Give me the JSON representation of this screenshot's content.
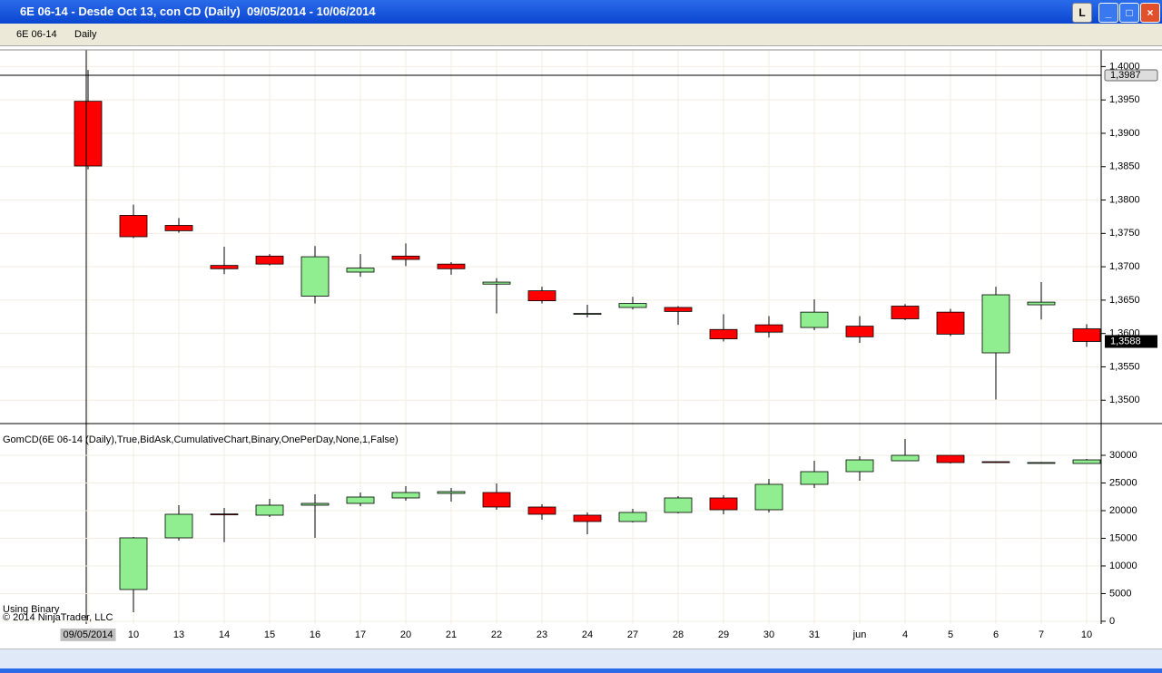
{
  "window": {
    "title": "6E 06-14 - Desde Oct 13, con CD (Daily)  09/05/2014 - 10/06/2014",
    "button": "L"
  },
  "toolbar": {
    "instrument": "6E 06-14",
    "interval": "Daily"
  },
  "footer": {
    "line1": "Using Binary",
    "line2": "© 2014 NinjaTrader, LLC"
  },
  "chart_data": [
    {
      "type": "candlestick",
      "categories": [
        "09/05/2014",
        "10",
        "13",
        "14",
        "15",
        "16",
        "17",
        "20",
        "21",
        "22",
        "23",
        "24",
        "27",
        "28",
        "29",
        "30",
        "31",
        "jun",
        "4",
        "5",
        "6",
        "7",
        "10"
      ],
      "open": [
        1.3948,
        1.3777,
        1.3762,
        1.3702,
        1.3716,
        1.3656,
        1.3692,
        1.3716,
        1.3704,
        1.3674,
        1.3664,
        1.363,
        1.3639,
        1.3639,
        1.3606,
        1.3613,
        1.3609,
        1.3611,
        1.3641,
        1.3632,
        1.3571,
        1.3643,
        1.3607
      ],
      "high": [
        1.3995,
        1.3793,
        1.3773,
        1.373,
        1.3719,
        1.3731,
        1.3719,
        1.3735,
        1.3707,
        1.3683,
        1.367,
        1.3643,
        1.3655,
        1.3641,
        1.3629,
        1.3626,
        1.3651,
        1.3626,
        1.3644,
        1.3637,
        1.367,
        1.3677,
        1.3614
      ],
      "low": [
        1.3846,
        1.3743,
        1.3751,
        1.3689,
        1.3702,
        1.3645,
        1.3685,
        1.3701,
        1.3688,
        1.363,
        1.3645,
        1.3624,
        1.3636,
        1.3613,
        1.3588,
        1.3594,
        1.3605,
        1.3586,
        1.362,
        1.3596,
        1.3501,
        1.3621,
        1.358
      ],
      "close": [
        1.3851,
        1.3745,
        1.3754,
        1.3697,
        1.3704,
        1.3715,
        1.3698,
        1.3711,
        1.3697,
        1.3677,
        1.3649,
        1.363,
        1.3645,
        1.3633,
        1.3592,
        1.3602,
        1.3632,
        1.3595,
        1.3622,
        1.3599,
        1.3658,
        1.3647,
        1.3588
      ],
      "up_color": "#90ee90",
      "down_color": "#ff0000",
      "ylim": [
        1.3465,
        1.4025
      ],
      "yticks": [
        {
          "value": 1.35,
          "label": "1,3500"
        },
        {
          "value": 1.355,
          "label": "1,3550"
        },
        {
          "value": 1.36,
          "label": "1,3600"
        },
        {
          "value": 1.365,
          "label": "1,3650"
        },
        {
          "value": 1.37,
          "label": "1,3700"
        },
        {
          "value": 1.375,
          "label": "1,3750"
        },
        {
          "value": 1.38,
          "label": "1,3800"
        },
        {
          "value": 1.385,
          "label": "1,3850"
        },
        {
          "value": 1.39,
          "label": "1,3900"
        },
        {
          "value": 1.395,
          "label": "1,3950"
        },
        {
          "value": 1.4,
          "label": "1,4000"
        }
      ],
      "crosshair": {
        "value": 1.3987,
        "label": "1,3987"
      },
      "last_price": {
        "value": 1.3588,
        "label": "1,3588"
      },
      "grid": true
    },
    {
      "type": "candlestick",
      "title": "GomCD(6E  06-14  (Daily),True,BidAsk,CumulativeChart,Binary,OnePerDay,None,1,False)",
      "open": [
        null,
        5738,
        15082,
        19400,
        19180,
        20984,
        21311,
        22295,
        23115,
        23279,
        20656,
        19180,
        18033,
        19672,
        22295,
        20164,
        24754,
        27049,
        29016,
        30000,
        28852,
        28689,
        28525
      ],
      "high": [
        null,
        15246,
        20984,
        20500,
        22131,
        22951,
        23279,
        24426,
        24098,
        24918,
        21147,
        19672,
        20328,
        22623,
        22787,
        25738,
        29016,
        29836,
        32951,
        30000,
        28900,
        28800,
        29344
      ],
      "low": [
        null,
        1639,
        14590,
        14300,
        18852,
        15082,
        20820,
        21803,
        21639,
        20164,
        18361,
        15738,
        17869,
        19508,
        19344,
        19672,
        24098,
        25410,
        29016,
        28525,
        28600,
        28600,
        28525
      ],
      "close": [
        null,
        15082,
        19344,
        19300,
        20984,
        21311,
        22459,
        23279,
        23443,
        20656,
        19344,
        18033,
        19672,
        22295,
        20164,
        24754,
        27049,
        29180,
        30000,
        28689,
        28689,
        28700,
        29180
      ],
      "up_color": "#90ee90",
      "down_color": "#ff0000",
      "ylim": [
        -500,
        35250
      ],
      "yticks": [
        0,
        5000,
        10000,
        15000,
        20000,
        25000,
        30000
      ],
      "grid": true
    }
  ]
}
